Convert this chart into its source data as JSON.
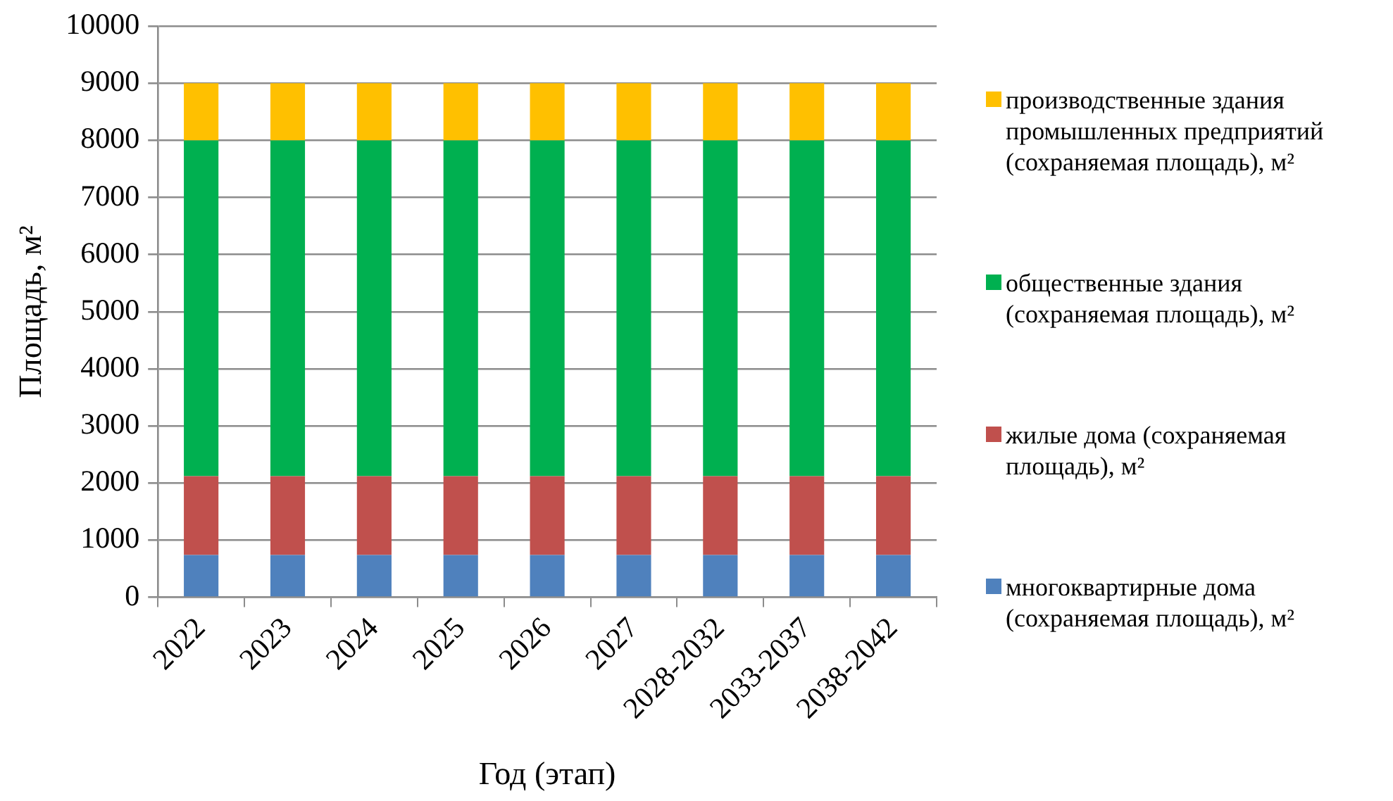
{
  "chart_data": {
    "type": "bar",
    "stacked": true,
    "xlabel": "Год (этап)",
    "ylabel": "Площадь, м²",
    "categories": [
      "2022",
      "2023",
      "2024",
      "2025",
      "2026",
      "2027",
      "2028-2032",
      "2033-2037",
      "2038-2042"
    ],
    "series": [
      {
        "name": "многоквартирные дома (сохраняемая площадь), м²",
        "color": "#4f81bd",
        "values": [
          740,
          740,
          740,
          740,
          740,
          740,
          740,
          740,
          740
        ]
      },
      {
        "name": "жилые дома (сохраняемая площадь), м²",
        "color": "#c0504d",
        "values": [
          1380,
          1380,
          1380,
          1380,
          1380,
          1380,
          1380,
          1380,
          1380
        ]
      },
      {
        "name": "общественные здания (сохраняемая площадь), м²",
        "color": "#00b050",
        "values": [
          5880,
          5880,
          5880,
          5880,
          5880,
          5880,
          5880,
          5880,
          5880
        ]
      },
      {
        "name": "производственные здания промышленных предприятий (сохраняемая площадь), м²",
        "color": "#ffc000",
        "values": [
          1000,
          1000,
          1000,
          1000,
          1000,
          1000,
          1000,
          1000,
          1000
        ]
      }
    ],
    "ylim": [
      0,
      10000
    ],
    "yticks": [
      0,
      1000,
      2000,
      3000,
      4000,
      5000,
      6000,
      7000,
      8000,
      9000,
      10000
    ],
    "grid": "y",
    "legend": "right"
  }
}
